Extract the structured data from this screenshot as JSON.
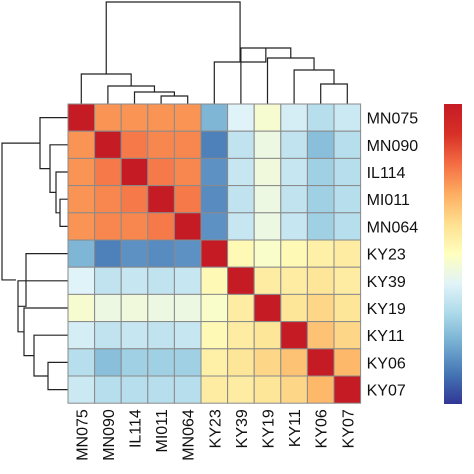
{
  "chart_data": {
    "type": "heatmap",
    "title": "",
    "rows": [
      "MN075",
      "MN090",
      "IL114",
      "MI011",
      "MN064",
      "KY23",
      "KY39",
      "KY19",
      "KY11",
      "KY06",
      "KY07"
    ],
    "columns": [
      "MN075",
      "MN090",
      "IL114",
      "MI011",
      "MN064",
      "KY23",
      "KY39",
      "KY19",
      "KY11",
      "KY06",
      "KY07"
    ],
    "value_range": [
      0,
      1
    ],
    "values": [
      [
        1.0,
        0.74,
        0.74,
        0.74,
        0.74,
        0.22,
        0.4,
        0.47,
        0.38,
        0.32,
        0.36
      ],
      [
        0.74,
        1.0,
        0.78,
        0.76,
        0.76,
        0.12,
        0.34,
        0.44,
        0.34,
        0.24,
        0.32
      ],
      [
        0.74,
        0.78,
        1.0,
        0.78,
        0.76,
        0.15,
        0.35,
        0.45,
        0.35,
        0.28,
        0.32
      ],
      [
        0.74,
        0.76,
        0.78,
        1.0,
        0.78,
        0.14,
        0.34,
        0.44,
        0.34,
        0.28,
        0.32
      ],
      [
        0.74,
        0.76,
        0.76,
        0.78,
        1.0,
        0.15,
        0.35,
        0.44,
        0.35,
        0.28,
        0.32
      ],
      [
        0.22,
        0.12,
        0.15,
        0.14,
        0.15,
        1.0,
        0.52,
        0.48,
        0.52,
        0.55,
        0.56
      ],
      [
        0.4,
        0.34,
        0.35,
        0.34,
        0.35,
        0.52,
        1.0,
        0.56,
        0.56,
        0.58,
        0.56
      ],
      [
        0.47,
        0.44,
        0.45,
        0.44,
        0.44,
        0.48,
        0.56,
        1.0,
        0.58,
        0.62,
        0.58
      ],
      [
        0.38,
        0.34,
        0.35,
        0.34,
        0.35,
        0.52,
        0.56,
        0.58,
        1.0,
        0.66,
        0.62
      ],
      [
        0.32,
        0.24,
        0.28,
        0.28,
        0.28,
        0.55,
        0.58,
        0.62,
        0.66,
        1.0,
        0.68
      ],
      [
        0.36,
        0.32,
        0.32,
        0.32,
        0.32,
        0.56,
        0.56,
        0.58,
        0.62,
        0.68,
        1.0
      ]
    ],
    "colormap": [
      "#313695",
      "#4575b4",
      "#74add1",
      "#abd9e9",
      "#e0f3f8",
      "#ffffbf",
      "#fee090",
      "#fdae61",
      "#f46d43",
      "#d73027",
      "#c51b25"
    ],
    "legend": {
      "type": "colorbar",
      "placement": "right",
      "tick_labels": []
    },
    "dendrograms": {
      "rows": "left",
      "columns": "top"
    }
  }
}
